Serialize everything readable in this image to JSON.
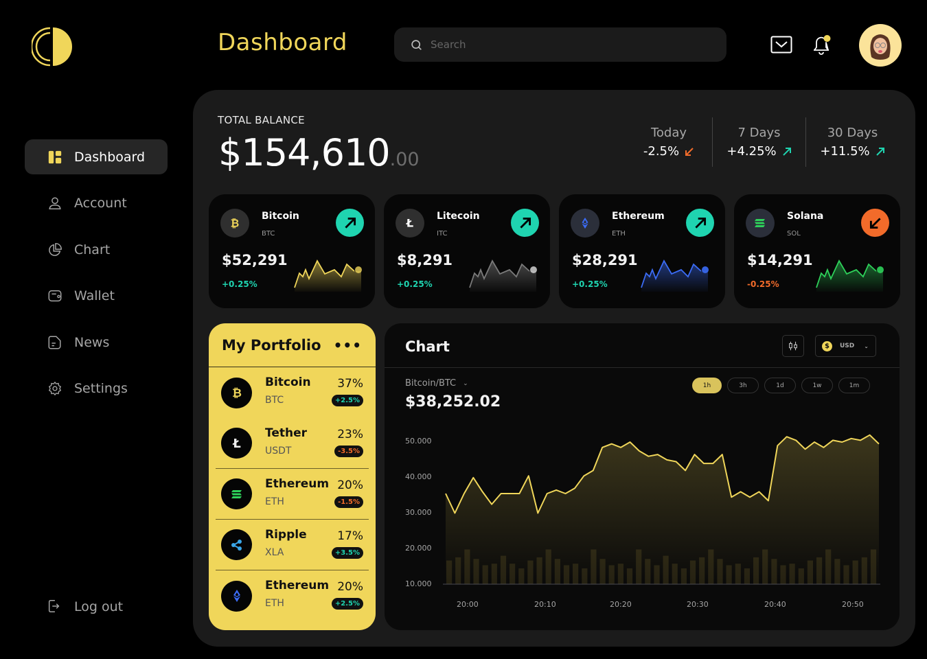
{
  "header": {
    "title": "Dashboard",
    "search": {
      "placeholder": "Search",
      "value": ""
    },
    "icons": {
      "mail": "mail-icon",
      "notifications": "bell-icon",
      "avatar": "user-avatar"
    }
  },
  "sidebar": {
    "items": [
      {
        "label": "Dashboard",
        "icon": "dashboard-icon",
        "active": true
      },
      {
        "label": "Account",
        "icon": "user-icon",
        "active": false
      },
      {
        "label": "Chart",
        "icon": "pie-chart-icon",
        "active": false
      },
      {
        "label": "Wallet",
        "icon": "wallet-icon",
        "active": false
      },
      {
        "label": "News",
        "icon": "news-icon",
        "active": false
      },
      {
        "label": "Settings",
        "icon": "gear-icon",
        "active": false
      }
    ],
    "logout": {
      "label": "Log out",
      "icon": "logout-icon"
    }
  },
  "balance": {
    "label": "TOTAL BALANCE",
    "whole": "$154,610",
    "cents": ".00"
  },
  "periods": [
    {
      "label": "Today",
      "value": "-2.5%",
      "direction": "down"
    },
    {
      "label": "7 Days",
      "value": "+4.25%",
      "direction": "up"
    },
    {
      "label": "30 Days",
      "value": "+11.5%",
      "direction": "up"
    }
  ],
  "coins": [
    {
      "name": "Bitcoin",
      "symbol": "BTC",
      "price": "$52,291",
      "change": "+0.25%",
      "direction": "up",
      "color": "#f0d65a"
    },
    {
      "name": "Litecoin",
      "symbol": "ITC",
      "price": "$8,291",
      "change": "+0.25%",
      "direction": "up",
      "color": "#8a8a8a"
    },
    {
      "name": "Ethereum",
      "symbol": "ETH",
      "price": "$28,291",
      "change": "+0.25%",
      "direction": "up",
      "color": "#3b6cf6"
    },
    {
      "name": "Solana",
      "symbol": "SOL",
      "price": "$14,291",
      "change": "-0.25%",
      "direction": "down",
      "color": "#2ed15a"
    }
  ],
  "portfolio": {
    "title": "My Portfolio",
    "more_label": "•••",
    "items": [
      {
        "name": "Bitcoin",
        "symbol": "BTC",
        "share": "37%",
        "change": "+2.5%",
        "direction": "up",
        "icon": "bitcoin-icon"
      },
      {
        "name": "Tether",
        "symbol": "USDT",
        "share": "23%",
        "change": "-3.5%",
        "direction": "down",
        "icon": "litecoin-icon"
      },
      {
        "name": "Ethereum",
        "symbol": "ETH",
        "share": "20%",
        "change": "-1.5%",
        "direction": "down",
        "icon": "solana-icon"
      },
      {
        "name": "Ripple",
        "symbol": "XLA",
        "share": "17%",
        "change": "+3.5%",
        "direction": "up",
        "icon": "ripple-icon"
      },
      {
        "name": "Ethereum",
        "symbol": "ETH",
        "share": "20%",
        "change": "+2.5%",
        "direction": "up",
        "icon": "ethereum-icon"
      }
    ]
  },
  "chart_panel": {
    "title": "Chart",
    "currency": "USD",
    "pair": "Bitcoin/BTC",
    "price": "$38,252.02",
    "ranges": [
      "1h",
      "3h",
      "1d",
      "1w",
      "1m"
    ],
    "active_range": "1h"
  },
  "colors": {
    "accent": "#f0d65a",
    "up": "#1fd4b0",
    "down": "#f26b2a",
    "panel": "#1b1b1b",
    "card": "#070707"
  },
  "chart_data": {
    "type": "line",
    "title": "Bitcoin/BTC",
    "xlabel": "",
    "ylabel": "",
    "x_ticks": [
      "20:00",
      "20:10",
      "20:20",
      "20:30",
      "20:40",
      "20:50"
    ],
    "y_ticks": [
      "10.000",
      "20.000",
      "30.000",
      "40.000",
      "50.000"
    ],
    "ylim": [
      10000,
      52000
    ],
    "grid": false,
    "legend": "none",
    "series": [
      {
        "name": "price",
        "x": [
          "19:57",
          "19:59",
          "20:00",
          "20:02",
          "20:03",
          "20:05",
          "20:06",
          "20:07",
          "20:08",
          "20:09",
          "20:10",
          "20:11",
          "20:12",
          "20:14",
          "20:15",
          "20:17",
          "20:18",
          "20:19",
          "20:20",
          "20:21",
          "20:23",
          "20:24",
          "20:25",
          "20:26",
          "20:27",
          "20:28",
          "20:29",
          "20:30",
          "20:31",
          "20:33",
          "20:34",
          "20:35",
          "20:36",
          "20:37",
          "20:38",
          "20:40",
          "20:41",
          "20:42",
          "20:43",
          "20:45",
          "20:46",
          "20:47",
          "20:48",
          "20:49",
          "20:50",
          "20:51",
          "20:52",
          "20:53"
        ],
        "values": [
          35500,
          30000,
          35500,
          40000,
          36000,
          32500,
          35500,
          35500,
          35500,
          40500,
          30000,
          35500,
          36500,
          35500,
          37000,
          40500,
          42000,
          48500,
          49500,
          48500,
          50000,
          47500,
          46000,
          46500,
          45000,
          44500,
          42000,
          46500,
          44000,
          44000,
          46500,
          34500,
          36000,
          34500,
          36000,
          33500,
          49000,
          51500,
          50500,
          48000,
          50000,
          48500,
          50500,
          50000,
          51000,
          50500,
          52000,
          49500
        ]
      },
      {
        "name": "volume",
        "type": "bar",
        "values": [
          15,
          17,
          22,
          16,
          12,
          13,
          18,
          13,
          10,
          15,
          17,
          22,
          16,
          12,
          13,
          10,
          22,
          16,
          12,
          13,
          10,
          22,
          16,
          12,
          18,
          13,
          10,
          15,
          17,
          22,
          16,
          12,
          13,
          10,
          17,
          22,
          16,
          12,
          13,
          10,
          15,
          17,
          22,
          16,
          12,
          15,
          17,
          22
        ]
      }
    ]
  }
}
